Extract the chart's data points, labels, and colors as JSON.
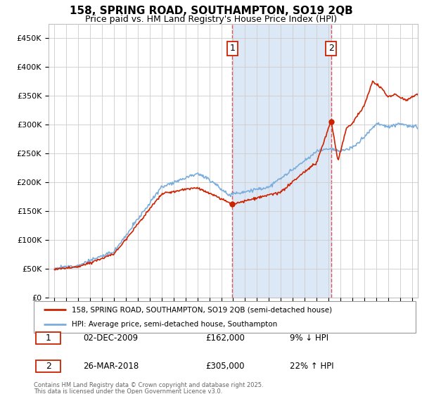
{
  "title_line1": "158, SPRING ROAD, SOUTHAMPTON, SO19 2QB",
  "title_line2": "Price paid vs. HM Land Registry's House Price Index (HPI)",
  "background_color": "#ffffff",
  "plot_bg_color": "#ffffff",
  "grid_color": "#cccccc",
  "hpi_color": "#7aaddc",
  "price_color": "#cc2200",
  "highlight_color": "#dce8f5",
  "dashed_color": "#dd4444",
  "ylim": [
    0,
    475000
  ],
  "yticks": [
    0,
    50000,
    100000,
    150000,
    200000,
    250000,
    300000,
    350000,
    400000,
    450000
  ],
  "ytick_labels": [
    "£0",
    "£50K",
    "£100K",
    "£150K",
    "£200K",
    "£250K",
    "£300K",
    "£350K",
    "£400K",
    "£450K"
  ],
  "transaction1_date": "02-DEC-2009",
  "transaction1_price": "£162,000",
  "transaction1_hpi": "9% ↓ HPI",
  "transaction1_year": 2009.92,
  "transaction1_price_val": 162000,
  "transaction2_date": "26-MAR-2018",
  "transaction2_price": "£305,000",
  "transaction2_hpi": "22% ↑ HPI",
  "transaction2_year": 2018.23,
  "transaction2_price_val": 305000,
  "legend_label1": "158, SPRING ROAD, SOUTHAMPTON, SO19 2QB (semi-detached house)",
  "legend_label2": "HPI: Average price, semi-detached house, Southampton",
  "footnote1": "Contains HM Land Registry data © Crown copyright and database right 2025.",
  "footnote2": "This data is licensed under the Open Government Licence v3.0.",
  "xmin": 1994.5,
  "xmax": 2025.5,
  "num_box_color": "#cc2200"
}
